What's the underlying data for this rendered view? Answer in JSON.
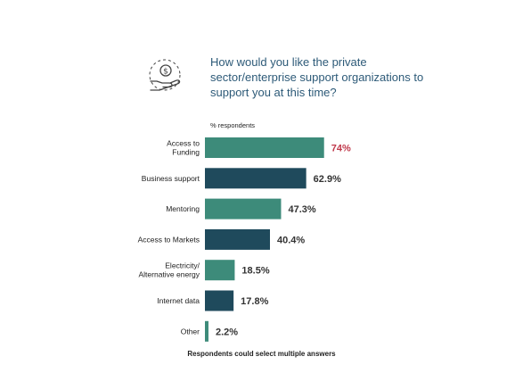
{
  "question": "How would you like the private sector/enterprise support organizations to support you at this time?",
  "footnote": "Respondents could select multiple answers",
  "colors": {
    "green": "#3d8b7a",
    "navy": "#1f4a5c",
    "highlight": "#c0394b",
    "value_text": "#333333",
    "icon": "#444444"
  },
  "icon": "hand-with-coin-icon",
  "chart_data": {
    "type": "bar",
    "orientation": "horizontal",
    "title": "",
    "xlabel": "% respondents",
    "ylabel": "",
    "xlim": [
      0,
      100
    ],
    "grid": false,
    "categories": [
      "Access to Funding",
      "Business support",
      "Mentoring",
      "Access to Markets",
      "Electricity/ Alternative energy",
      "Internet data",
      "Other"
    ],
    "category_lines": [
      [
        "Access to",
        "Funding"
      ],
      [
        "Business support"
      ],
      [
        "Mentoring"
      ],
      [
        "Access to Markets"
      ],
      [
        "Electricity/",
        "Alternative energy"
      ],
      [
        "Internet data"
      ],
      [
        "Other"
      ]
    ],
    "values": [
      74,
      62.9,
      47.3,
      40.4,
      18.5,
      17.8,
      2.2
    ],
    "value_labels": [
      "74%",
      "62.9%",
      "47.3%",
      "40.4%",
      "18.5%",
      "17.8%",
      "2.2%"
    ],
    "bar_colors": [
      "green",
      "navy",
      "green",
      "navy",
      "green",
      "navy",
      "green"
    ],
    "highlight_index": 0
  }
}
